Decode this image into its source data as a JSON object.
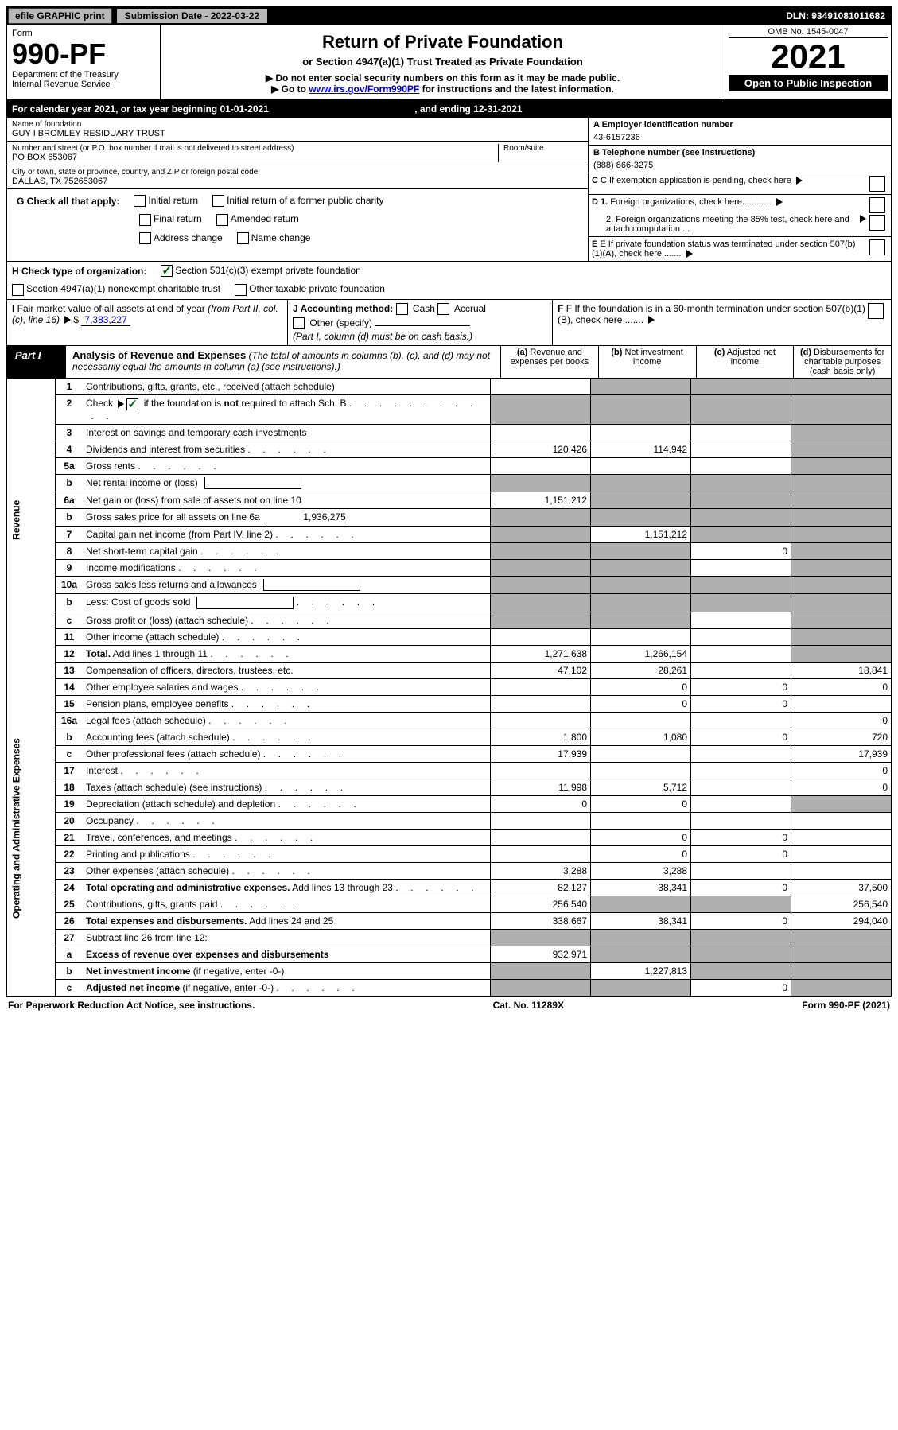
{
  "colors": {
    "bg": "#ffffff",
    "text": "#000000",
    "header_bg": "#000000",
    "header_text": "#ffffff",
    "button_bg": "#b8b8b8",
    "shaded_cell": "#b0b0b0",
    "link": "#0000cc",
    "check_green": "#006600"
  },
  "topbar": {
    "efile": "efile GRAPHIC print",
    "submission_label": "Submission Date - 2022-03-22",
    "dln": "DLN: 93491081011682"
  },
  "header": {
    "form_word": "Form",
    "form_number": "990-PF",
    "dept": "Department of the Treasury",
    "irs": "Internal Revenue Service",
    "title": "Return of Private Foundation",
    "subtitle": "or Section 4947(a)(1) Trust Treated as Private Foundation",
    "instr1": "▶ Do not enter social security numbers on this form as it may be made public.",
    "instr2_pre": "▶ Go to ",
    "instr2_link": "www.irs.gov/Form990PF",
    "instr2_post": " for instructions and the latest information.",
    "omb": "OMB No. 1545-0047",
    "year": "2021",
    "open": "Open to Public Inspection"
  },
  "cal_year": {
    "text_pre": "For calendar year 2021, or tax year beginning ",
    "begin": "01-01-2021",
    "mid": ", and ending ",
    "end": "12-31-2021"
  },
  "foundation": {
    "name_label": "Name of foundation",
    "name": "GUY I BROMLEY RESIDUARY TRUST",
    "addr_label": "Number and street (or P.O. box number if mail is not delivered to street address)",
    "addr": "PO BOX 653067",
    "room_label": "Room/suite",
    "city_label": "City or town, state or province, country, and ZIP or foreign postal code",
    "city": "DALLAS, TX  752653067",
    "ein_label": "A Employer identification number",
    "ein": "43-6157236",
    "phone_label": "B Telephone number (see instructions)",
    "phone": "(888) 866-3275",
    "c_label": "C If exemption application is pending, check here",
    "d1_label": "D 1. Foreign organizations, check here............",
    "d2_label": "2. Foreign organizations meeting the 85% test, check here and attach computation ...",
    "e_label": "E If private foundation status was terminated under section 507(b)(1)(A), check here .......",
    "f_label": "F If the foundation is in a 60-month termination under section 507(b)(1)(B), check here .......",
    "g_label": "G Check all that apply:",
    "g_initial": "Initial return",
    "g_initial_former": "Initial return of a former public charity",
    "g_final": "Final return",
    "g_amended": "Amended return",
    "g_addr_change": "Address change",
    "g_name_change": "Name change",
    "h_label": "H Check type of organization:",
    "h_501c3": "Section 501(c)(3) exempt private foundation",
    "h_4947": "Section 4947(a)(1) nonexempt charitable trust",
    "h_other": "Other taxable private foundation",
    "i_label": "I Fair market value of all assets at end of year (from Part II, col. (c), line 16)",
    "i_value": "7,383,227",
    "j_label": "J Accounting method:",
    "j_cash": "Cash",
    "j_accrual": "Accrual",
    "j_other": "Other (specify)",
    "j_note": "(Part I, column (d) must be on cash basis.)"
  },
  "part1": {
    "label": "Part I",
    "title": "Analysis of Revenue and Expenses",
    "note": "(The total of amounts in columns (b), (c), and (d) may not necessarily equal the amounts in column (a) (see instructions).)",
    "col_a": "(a) Revenue and expenses per books",
    "col_b": "(b) Net investment income",
    "col_c": "(c) Adjusted net income",
    "col_d": "(d) Disbursements for charitable purposes (cash basis only)"
  },
  "side": {
    "revenue": "Revenue",
    "expenses": "Operating and Administrative Expenses"
  },
  "rows": [
    {
      "n": "1",
      "d": "Contributions, gifts, grants, etc., received (attach schedule)",
      "a": "",
      "b": "shade",
      "c": "shade",
      "dcol": "shade"
    },
    {
      "n": "2",
      "d": "Check ▶ ☑ if the foundation is <b>not</b> required to attach Sch. B",
      "a": "shade",
      "b": "shade",
      "c": "shade",
      "dcol": "shade",
      "dots": true
    },
    {
      "n": "3",
      "d": "Interest on savings and temporary cash investments",
      "a": "",
      "b": "",
      "c": "",
      "dcol": "shade"
    },
    {
      "n": "4",
      "d": "Dividends and interest from securities",
      "a": "120,426",
      "b": "114,942",
      "c": "",
      "dcol": "shade",
      "dots": true
    },
    {
      "n": "5a",
      "d": "Gross rents",
      "a": "",
      "b": "",
      "c": "",
      "dcol": "shade",
      "dots": true
    },
    {
      "n": "b",
      "d": "Net rental income or (loss)",
      "a": "shade",
      "b": "shade",
      "c": "shade",
      "dcol": "shade",
      "inline": true
    },
    {
      "n": "6a",
      "d": "Net gain or (loss) from sale of assets not on line 10",
      "a": "1,151,212",
      "b": "shade",
      "c": "shade",
      "dcol": "shade"
    },
    {
      "n": "b",
      "d": "Gross sales price for all assets on line 6a",
      "a": "shade",
      "b": "shade",
      "c": "shade",
      "dcol": "shade",
      "inline_val": "1,936,275"
    },
    {
      "n": "7",
      "d": "Capital gain net income (from Part IV, line 2)",
      "a": "shade",
      "b": "1,151,212",
      "c": "shade",
      "dcol": "shade",
      "dots": true
    },
    {
      "n": "8",
      "d": "Net short-term capital gain",
      "a": "shade",
      "b": "shade",
      "c": "0",
      "dcol": "shade",
      "dots": true
    },
    {
      "n": "9",
      "d": "Income modifications",
      "a": "shade",
      "b": "shade",
      "c": "",
      "dcol": "shade",
      "dots": true
    },
    {
      "n": "10a",
      "d": "Gross sales less returns and allowances",
      "a": "shade",
      "b": "shade",
      "c": "shade",
      "dcol": "shade",
      "inline": true
    },
    {
      "n": "b",
      "d": "Less: Cost of goods sold",
      "a": "shade",
      "b": "shade",
      "c": "shade",
      "dcol": "shade",
      "inline": true,
      "dots": true
    },
    {
      "n": "c",
      "d": "Gross profit or (loss) (attach schedule)",
      "a": "shade",
      "b": "shade",
      "c": "",
      "dcol": "shade",
      "dots": true
    },
    {
      "n": "11",
      "d": "Other income (attach schedule)",
      "a": "",
      "b": "",
      "c": "",
      "dcol": "shade",
      "dots": true
    },
    {
      "n": "12",
      "d": "<b>Total.</b> Add lines 1 through 11",
      "a": "1,271,638",
      "b": "1,266,154",
      "c": "",
      "dcol": "shade",
      "dots": true
    },
    {
      "n": "13",
      "d": "Compensation of officers, directors, trustees, etc.",
      "a": "47,102",
      "b": "28,261",
      "c": "",
      "dcol": "18,841",
      "sec": "exp"
    },
    {
      "n": "14",
      "d": "Other employee salaries and wages",
      "a": "",
      "b": "0",
      "c": "0",
      "dcol": "0",
      "dots": true,
      "sec": "exp"
    },
    {
      "n": "15",
      "d": "Pension plans, employee benefits",
      "a": "",
      "b": "0",
      "c": "0",
      "dcol": "",
      "dots": true,
      "sec": "exp"
    },
    {
      "n": "16a",
      "d": "Legal fees (attach schedule)",
      "a": "",
      "b": "",
      "c": "",
      "dcol": "0",
      "dots": true,
      "sec": "exp"
    },
    {
      "n": "b",
      "d": "Accounting fees (attach schedule)",
      "a": "1,800",
      "b": "1,080",
      "c": "0",
      "dcol": "720",
      "dots": true,
      "sec": "exp"
    },
    {
      "n": "c",
      "d": "Other professional fees (attach schedule)",
      "a": "17,939",
      "b": "",
      "c": "",
      "dcol": "17,939",
      "dots": true,
      "sec": "exp"
    },
    {
      "n": "17",
      "d": "Interest",
      "a": "",
      "b": "",
      "c": "",
      "dcol": "0",
      "dots": true,
      "sec": "exp"
    },
    {
      "n": "18",
      "d": "Taxes (attach schedule) (see instructions)",
      "a": "11,998",
      "b": "5,712",
      "c": "",
      "dcol": "0",
      "dots": true,
      "sec": "exp"
    },
    {
      "n": "19",
      "d": "Depreciation (attach schedule) and depletion",
      "a": "0",
      "b": "0",
      "c": "",
      "dcol": "shade",
      "dots": true,
      "sec": "exp"
    },
    {
      "n": "20",
      "d": "Occupancy",
      "a": "",
      "b": "",
      "c": "",
      "dcol": "",
      "dots": true,
      "sec": "exp"
    },
    {
      "n": "21",
      "d": "Travel, conferences, and meetings",
      "a": "",
      "b": "0",
      "c": "0",
      "dcol": "",
      "dots": true,
      "sec": "exp"
    },
    {
      "n": "22",
      "d": "Printing and publications",
      "a": "",
      "b": "0",
      "c": "0",
      "dcol": "",
      "dots": true,
      "sec": "exp"
    },
    {
      "n": "23",
      "d": "Other expenses (attach schedule)",
      "a": "3,288",
      "b": "3,288",
      "c": "",
      "dcol": "",
      "dots": true,
      "sec": "exp"
    },
    {
      "n": "24",
      "d": "<b>Total operating and administrative expenses.</b> Add lines 13 through 23",
      "a": "82,127",
      "b": "38,341",
      "c": "0",
      "dcol": "37,500",
      "dots": true,
      "sec": "exp"
    },
    {
      "n": "25",
      "d": "Contributions, gifts, grants paid",
      "a": "256,540",
      "b": "shade",
      "c": "shade",
      "dcol": "256,540",
      "dots": true,
      "sec": "exp"
    },
    {
      "n": "26",
      "d": "<b>Total expenses and disbursements.</b> Add lines 24 and 25",
      "a": "338,667",
      "b": "38,341",
      "c": "0",
      "dcol": "294,040",
      "sec": "exp"
    },
    {
      "n": "27",
      "d": "Subtract line 26 from line 12:",
      "a": "shade",
      "b": "shade",
      "c": "shade",
      "dcol": "shade",
      "sec": "exp"
    },
    {
      "n": "a",
      "d": "<b>Excess of revenue over expenses and disbursements</b>",
      "a": "932,971",
      "b": "shade",
      "c": "shade",
      "dcol": "shade",
      "sec": "exp"
    },
    {
      "n": "b",
      "d": "<b>Net investment income</b> (if negative, enter -0-)",
      "a": "shade",
      "b": "1,227,813",
      "c": "shade",
      "dcol": "shade",
      "sec": "exp"
    },
    {
      "n": "c",
      "d": "<b>Adjusted net income</b> (if negative, enter -0-)",
      "a": "shade",
      "b": "shade",
      "c": "0",
      "dcol": "shade",
      "dots": true,
      "sec": "exp"
    }
  ],
  "footer": {
    "left": "For Paperwork Reduction Act Notice, see instructions.",
    "mid": "Cat. No. 11289X",
    "right": "Form 990-PF (2021)"
  }
}
